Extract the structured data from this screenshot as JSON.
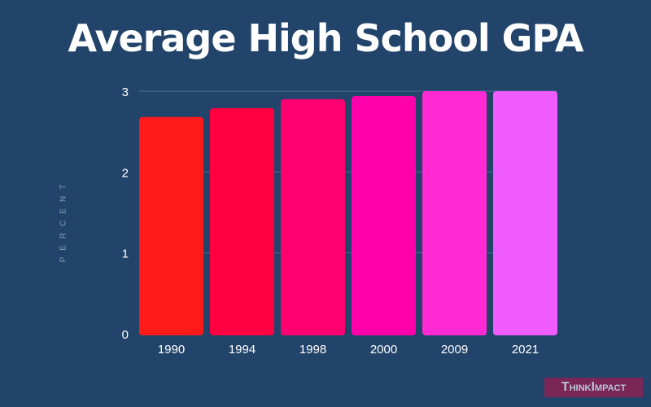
{
  "chart_data": {
    "type": "bar",
    "title": "Average High School GPA",
    "ylabel": "PERCENT",
    "xlabel": "",
    "categories": [
      "1990",
      "1994",
      "1998",
      "2000",
      "2009",
      "2021"
    ],
    "values": [
      2.68,
      2.79,
      2.9,
      2.94,
      3.0,
      3.0
    ],
    "colors": [
      "#ff1a1a",
      "#ff0040",
      "#ff0070",
      "#ff00aa",
      "#ff2ad4",
      "#f05cff"
    ],
    "ylim": [
      0,
      3
    ],
    "yticks": [
      0,
      1,
      2,
      3
    ],
    "grid": true
  },
  "branding": {
    "logo_text": "ThinkImpact"
  }
}
